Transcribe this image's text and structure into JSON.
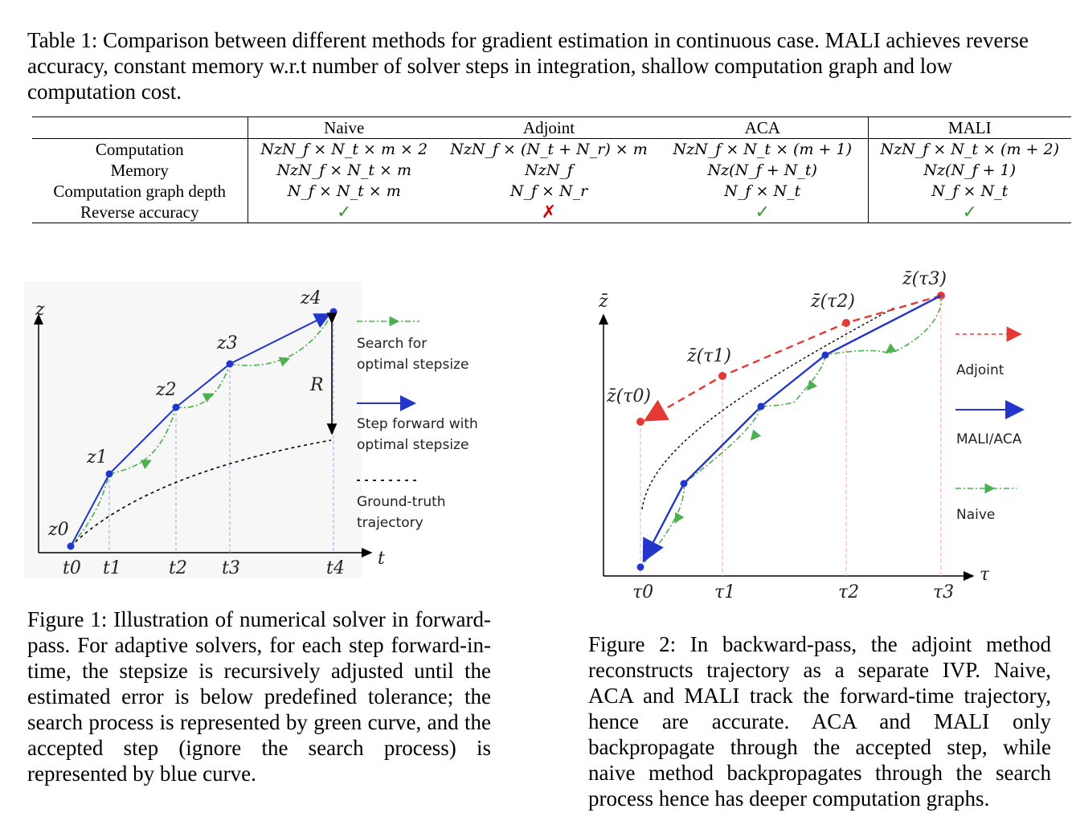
{
  "table": {
    "caption_label": "Table 1:",
    "caption_text": "Comparison between different methods for gradient estimation in continuous case. MALI achieves reverse accuracy, constant memory w.r.t number of solver steps in integration, shallow computation graph and low computation cost.",
    "columns": [
      "Naive",
      "Adjoint",
      "ACA",
      "MALI"
    ],
    "rows": [
      {
        "label": "Computation",
        "cells": [
          "NzN_f × N_t × m × 2",
          "NzN_f × (N_t + N_r) × m",
          "NzN_f × N_t × (m + 1)",
          "NzN_f × N_t × (m + 2)"
        ]
      },
      {
        "label": "Memory",
        "cells": [
          "NzN_f × N_t × m",
          "NzN_f",
          "Nz(N_f + N_t)",
          "Nz(N_f + 1)"
        ]
      },
      {
        "label": "Computation graph depth",
        "cells": [
          "N_f × N_t × m",
          "N_f × N_r",
          "N_f × N_t",
          "N_f × N_t"
        ]
      },
      {
        "label": "Reverse accuracy",
        "cells": [
          "✓",
          "✗",
          "✓",
          "✓"
        ]
      }
    ]
  },
  "figure1": {
    "y_axis": "z",
    "x_axis": "t",
    "points": [
      "z0",
      "z1",
      "z2",
      "z3",
      "z4"
    ],
    "ticks": [
      "t0",
      "t1",
      "t2",
      "t3",
      "t4"
    ],
    "r_label": "R",
    "legend": [
      {
        "text": "Search for optimal stepsize",
        "color": "#4caf50"
      },
      {
        "text": "Step forward with optimal stepsize",
        "color": "#2236cc"
      },
      {
        "text": "Ground-truth trajectory",
        "color": "#000000"
      }
    ],
    "caption_label": "Figure 1:",
    "caption_text": "Illustration of numerical solver in forward-pass. For adaptive solvers, for each step forward-in-time, the stepsize is recursively adjusted until the estimated error is below predefined tolerance; the search process is represented by green curve, and the accepted step (ignore the search process) is represented by blue curve."
  },
  "figure2": {
    "y_axis": "z̄",
    "x_axis": "τ",
    "points": [
      "z̄(τ0)",
      "z̄(τ1)",
      "z̄(τ2)",
      "z̄(τ3)"
    ],
    "ticks": [
      "τ0",
      "τ1",
      "τ2",
      "τ3"
    ],
    "legend": [
      {
        "text": "Adjoint",
        "color": "#e53935"
      },
      {
        "text": "MALI/ACA",
        "color": "#2236cc"
      },
      {
        "text": "Naive",
        "color": "#4caf50"
      }
    ],
    "caption_label": "Figure 2:",
    "caption_text": "In backward-pass, the adjoint method reconstructs trajectory as a separate IVP. Naive, ACA and MALI track the forward-time trajectory, hence are accurate. ACA and MALI only backpropagate through the accepted step, while naive method backpropagates through the search process hence has deeper computation graphs."
  }
}
